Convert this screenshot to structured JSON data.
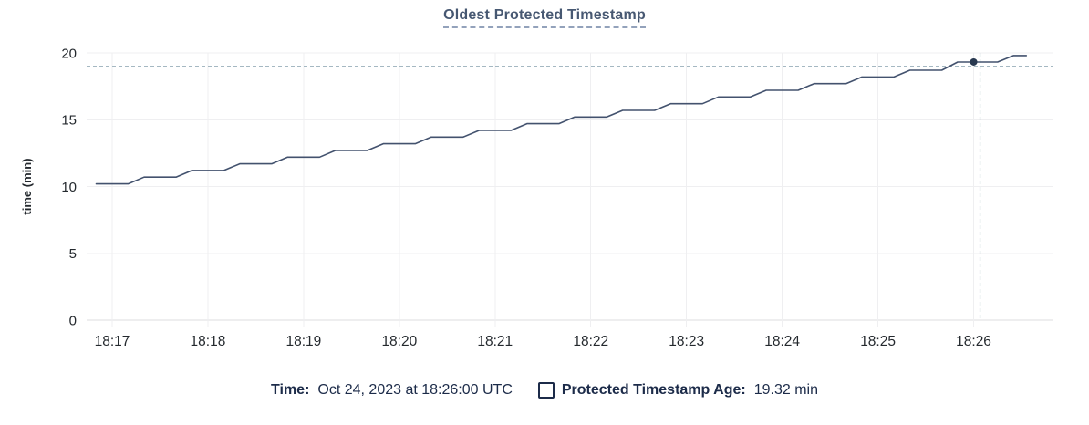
{
  "title": "Oldest Protected Timestamp",
  "colors": {
    "title": "#475872",
    "axis_text": "#24292e",
    "legend_text": "#1c2b49",
    "line": "#43526e",
    "dot": "#283850",
    "grid": "#efeff1",
    "axis_line": "#dcdddf",
    "crosshair": "#a5b8c2",
    "background": "#ffffff"
  },
  "chart_data": {
    "type": "line",
    "title": "Oldest Protected Timestamp",
    "xlabel": "",
    "ylabel": "time (min)",
    "ylim": [
      0,
      20
    ],
    "yticks": [
      0,
      5,
      10,
      15,
      20
    ],
    "xticks": [
      "18:17",
      "18:18",
      "18:19",
      "18:20",
      "18:21",
      "18:22",
      "18:23",
      "18:24",
      "18:25",
      "18:26"
    ],
    "x_window": [
      "18:16:44",
      "18:26:50"
    ],
    "grid": true,
    "legend_position": "bottom",
    "series": [
      {
        "name": "Protected Timestamp Age",
        "unit": "min",
        "points": [
          [
            "18:16:50",
            10.2
          ],
          [
            "18:17:10",
            10.2
          ],
          [
            "18:17:20",
            10.7
          ],
          [
            "18:17:40",
            10.7
          ],
          [
            "18:17:50",
            11.2
          ],
          [
            "18:18:10",
            11.2
          ],
          [
            "18:18:20",
            11.7
          ],
          [
            "18:18:40",
            11.7
          ],
          [
            "18:18:50",
            12.2
          ],
          [
            "18:19:10",
            12.2
          ],
          [
            "18:19:20",
            12.7
          ],
          [
            "18:19:40",
            12.7
          ],
          [
            "18:19:50",
            13.2
          ],
          [
            "18:20:10",
            13.2
          ],
          [
            "18:20:20",
            13.7
          ],
          [
            "18:20:40",
            13.7
          ],
          [
            "18:20:50",
            14.2
          ],
          [
            "18:21:10",
            14.2
          ],
          [
            "18:21:20",
            14.7
          ],
          [
            "18:21:40",
            14.7
          ],
          [
            "18:21:50",
            15.2
          ],
          [
            "18:22:10",
            15.2
          ],
          [
            "18:22:20",
            15.7
          ],
          [
            "18:22:40",
            15.7
          ],
          [
            "18:22:50",
            16.2
          ],
          [
            "18:23:10",
            16.2
          ],
          [
            "18:23:20",
            16.7
          ],
          [
            "18:23:40",
            16.7
          ],
          [
            "18:23:50",
            17.2
          ],
          [
            "18:24:10",
            17.2
          ],
          [
            "18:24:20",
            17.7
          ],
          [
            "18:24:40",
            17.7
          ],
          [
            "18:24:50",
            18.2
          ],
          [
            "18:25:10",
            18.2
          ],
          [
            "18:25:20",
            18.7
          ],
          [
            "18:25:40",
            18.7
          ],
          [
            "18:25:50",
            19.32
          ],
          [
            "18:26:15",
            19.32
          ],
          [
            "18:26:25",
            19.8
          ],
          [
            "18:26:33",
            19.8
          ]
        ]
      }
    ],
    "highlight_point": {
      "time": "18:26:00",
      "value": 19.32
    },
    "crosshair": {
      "time": "18:26:04",
      "value": 19.0
    }
  },
  "legend": {
    "time_label": "Time:",
    "time_value": "Oct 24, 2023 at 18:26:00 UTC",
    "series_label": "Protected Timestamp Age:",
    "series_value": "19.32 min"
  }
}
